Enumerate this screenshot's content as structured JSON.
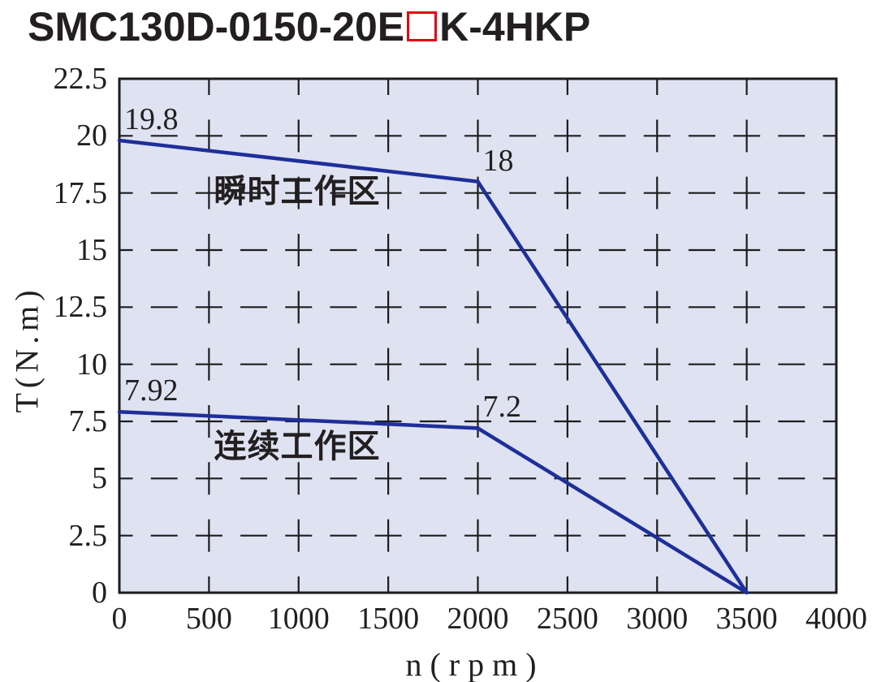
{
  "title": {
    "prefix": "SMC130D-0150-20E",
    "suffix": "K-4HKP",
    "placeholder_box_color": "#e60012"
  },
  "chart_data": {
    "type": "line",
    "title": "SMC130D-0150-20E□K-4HKP",
    "xlabel": "n(rpm)",
    "ylabel": "T(N.m)",
    "xlim": [
      0,
      4000
    ],
    "ylim": [
      0,
      22.5
    ],
    "x_ticks": [
      0,
      500,
      1000,
      1500,
      2000,
      2500,
      3000,
      3500,
      4000
    ],
    "x_tick_labels": [
      "0",
      "500",
      "1000",
      "1500",
      "2000",
      "2500",
      "3000",
      "3500",
      "4000"
    ],
    "y_ticks": [
      0,
      2.5,
      5,
      7.5,
      10,
      12.5,
      15,
      17.5,
      20,
      22.5
    ],
    "y_tick_labels": [
      "0",
      "2.5",
      "5",
      "7.5",
      "10",
      "12.5",
      "15",
      "17.5",
      "20",
      "22.5"
    ],
    "grid": "dashed",
    "legend_position": "none",
    "plot_bg_color": "#dee2f1",
    "grid_color": "#1c1c1c",
    "line_color": "#1e2f9a",
    "series": [
      {
        "name": "瞬时工作区",
        "points": [
          [
            0,
            19.8
          ],
          [
            2000,
            18
          ],
          [
            3500,
            0
          ]
        ]
      },
      {
        "name": "连续工作区",
        "points": [
          [
            0,
            7.92
          ],
          [
            2000,
            7.2
          ],
          [
            3500,
            0
          ]
        ]
      }
    ],
    "point_labels": [
      {
        "text": "19.8",
        "x": 0,
        "y": 19.8
      },
      {
        "text": "18",
        "x": 2000,
        "y": 18
      },
      {
        "text": "7.92",
        "x": 0,
        "y": 7.92
      },
      {
        "text": "7.2",
        "x": 2000,
        "y": 7.2
      }
    ],
    "region_labels": [
      {
        "text": "瞬时工作区",
        "x": 992,
        "y": 17.7
      },
      {
        "text": "连续工作区",
        "x": 992,
        "y": 6.54
      }
    ]
  }
}
